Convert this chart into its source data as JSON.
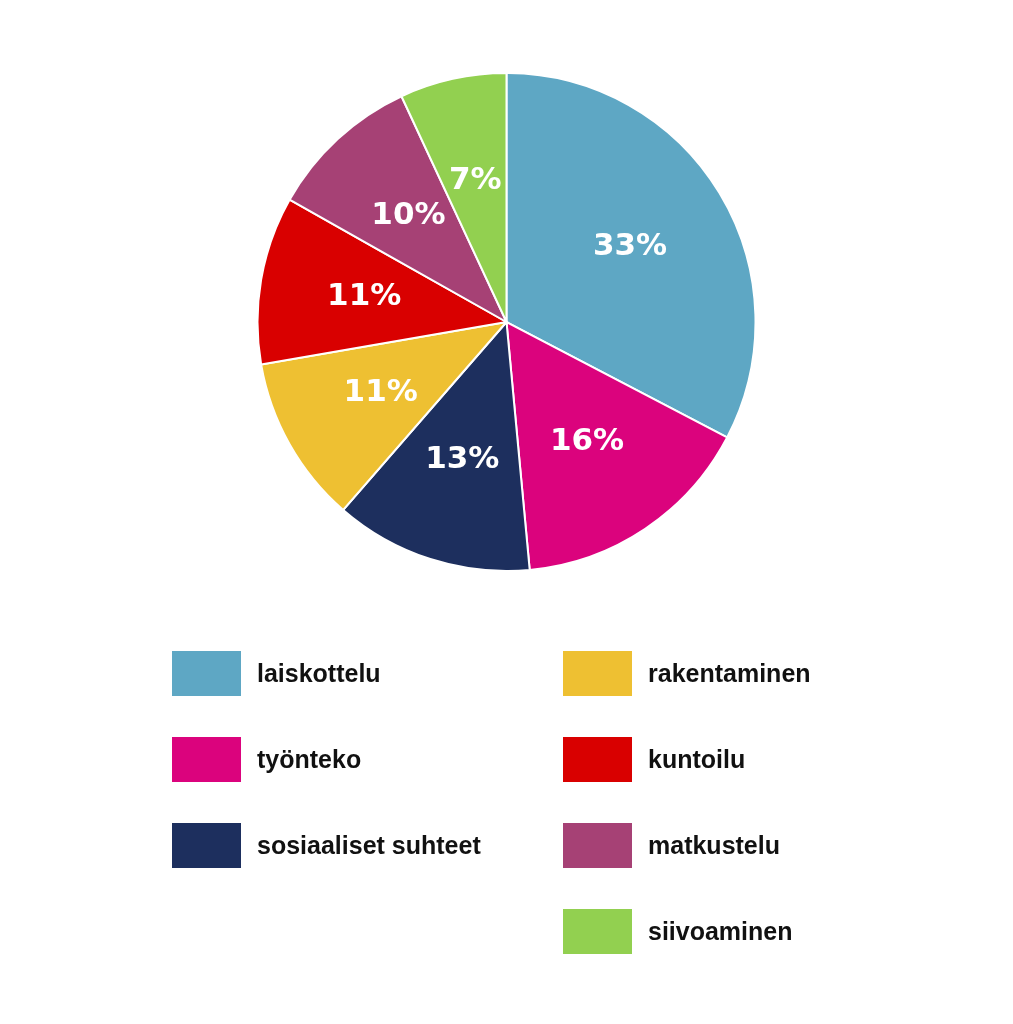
{
  "chart_data": {
    "type": "pie",
    "categories": [
      "laiskottelu",
      "työnteko",
      "sosiaaliset suhteet",
      "rakentaminen",
      "kuntoilu",
      "matkustelu",
      "siivoaminen"
    ],
    "values": [
      33,
      16,
      13,
      11,
      11,
      10,
      7
    ],
    "colors": [
      "#5ea7c4",
      "#db037d",
      "#1d2f5e",
      "#eec032",
      "#d90000",
      "#a64175",
      "#92d050"
    ],
    "value_labels": [
      "33%",
      "16%",
      "13%",
      "11%",
      "11%",
      "10%",
      "7%"
    ],
    "legend": "bottom"
  }
}
